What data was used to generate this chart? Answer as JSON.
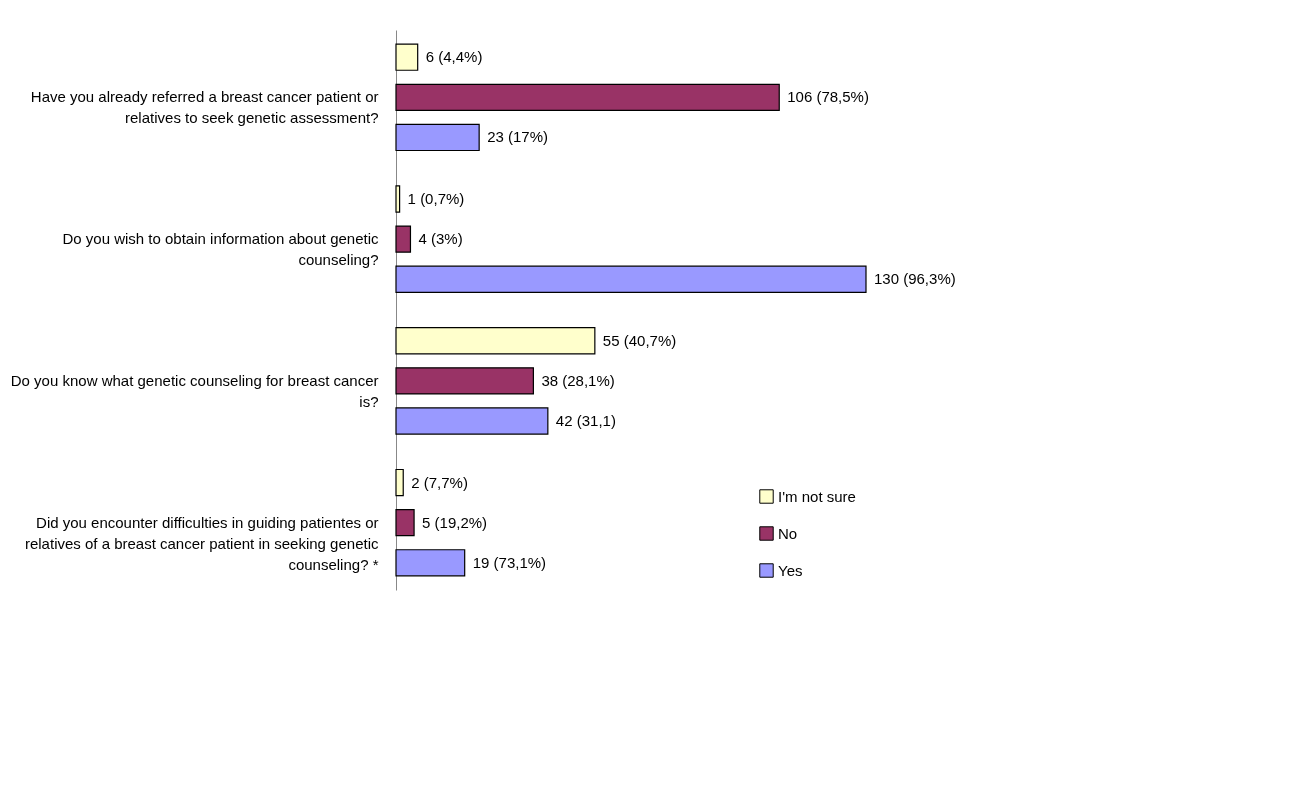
{
  "chart_data": {
    "type": "bar",
    "orientation": "horizontal",
    "categories": [
      "Have you already referred a breast cancer patient or relatives to seek genetic assessment?",
      "Do you wish to obtain information about genetic counseling?",
      "Do you know what genetic counseling for breast cancer is?",
      "Did you encounter difficulties in guiding patientes  or relatives of a breast cancer patient in seeking genetic counseling? *"
    ],
    "series": [
      {
        "name": "I'm not sure",
        "color": "#ffffcc",
        "values": [
          6,
          1,
          55,
          2
        ],
        "value_labels": [
          "6  (4,4%)",
          "1 (0,7%)",
          "55 (40,7%)",
          "2 (7,7%)"
        ]
      },
      {
        "name": "No",
        "color": "#993366",
        "values": [
          106,
          4,
          38,
          5
        ],
        "value_labels": [
          "106  (78,5%)",
          "4 (3%)",
          "38 (28,1%)",
          "5 (19,2%)"
        ]
      },
      {
        "name": "Yes",
        "color": "#9999ff",
        "values": [
          23,
          130,
          42,
          19
        ],
        "value_labels": [
          "23 (17%)",
          "130 (96,3%)",
          "42 (31,1)",
          "19  (73,1%)"
        ]
      }
    ],
    "legend": "bottom right"
  }
}
